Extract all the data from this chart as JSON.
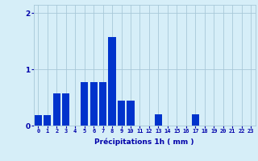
{
  "categories": [
    0,
    1,
    2,
    3,
    4,
    5,
    6,
    7,
    8,
    9,
    10,
    11,
    12,
    13,
    14,
    15,
    16,
    17,
    18,
    19,
    20,
    21,
    22,
    23
  ],
  "values": [
    0.18,
    0.18,
    0.58,
    0.58,
    0.0,
    0.78,
    0.78,
    0.78,
    1.58,
    0.44,
    0.44,
    0.0,
    0.0,
    0.2,
    0.0,
    0.0,
    0.0,
    0.2,
    0.0,
    0.0,
    0.0,
    0.0,
    0.0,
    0.0
  ],
  "bar_color": "#0033cc",
  "background_color": "#d6eef8",
  "grid_color": "#a8c8d8",
  "xlabel": "Précipitations 1h ( mm )",
  "ylim": [
    0,
    2.15
  ],
  "yticks": [
    0,
    1,
    2
  ],
  "xlabel_color": "#0000aa",
  "tick_color": "#0000aa",
  "tick_fontsize": 5.0,
  "xlabel_fontsize": 6.5,
  "ytick_fontsize": 6.5,
  "bar_width": 0.8
}
